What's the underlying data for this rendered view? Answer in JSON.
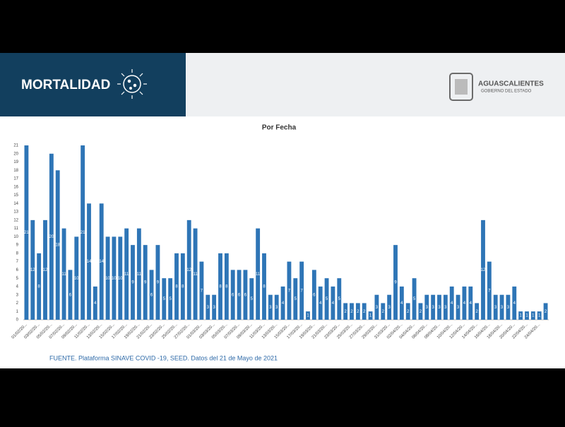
{
  "header": {
    "title": "MORTALIDAD",
    "logo_name": "AGUASCALIENTES",
    "logo_subtitle": "GOBIERNO DEL ESTADO"
  },
  "footer": "FUENTE. Plataforma SINAVE COVID -19, SEED. Datos del 21 de Mayo de 2021",
  "chart_data": {
    "type": "bar",
    "title": "Por Fecha",
    "color": "#2e75b6",
    "categories": [
      "01/02/20...",
      null,
      "03/02/20...",
      null,
      "05/02/20...",
      null,
      "07/02/20...",
      null,
      "09/02/20...",
      null,
      "11/02/20...",
      null,
      "13/02/20...",
      null,
      "15/02/20...",
      null,
      "17/02/20...",
      null,
      "19/02/20...",
      null,
      "21/02/20...",
      null,
      "23/02/20...",
      null,
      "25/02/20...",
      null,
      "27/02/20...",
      null,
      "01/03/20...",
      null,
      "03/03/20...",
      null,
      "05/03/20...",
      null,
      "07/03/20...",
      null,
      "09/03/20...",
      null,
      "11/03/20...",
      null,
      "13/03/20...",
      null,
      "15/03/20...",
      null,
      "17/03/20...",
      null,
      "19/03/20...",
      null,
      "21/03/20...",
      null,
      "23/03/20...",
      null,
      "25/03/20...",
      null,
      "27/03/20...",
      null,
      "29/03/20...",
      null,
      "31/03/20...",
      null,
      "02/04/20...",
      null,
      "04/04/20...",
      null,
      "06/04/20...",
      null,
      "08/04/20...",
      null,
      "10/04/20...",
      null,
      "12/04/20...",
      null,
      "14/04/20...",
      null,
      "16/04/20...",
      null,
      "18/04/20...",
      null,
      "20/04/20...",
      null,
      "22/04/20...",
      null,
      "24/04/20...",
      null
    ],
    "values": [
      21,
      12,
      8,
      12,
      20,
      18,
      11,
      6,
      10,
      21,
      14,
      4,
      14,
      10,
      10,
      10,
      11,
      9,
      11,
      9,
      6,
      9,
      5,
      5,
      8,
      8,
      12,
      11,
      7,
      3,
      3,
      8,
      8,
      6,
      6,
      6,
      5,
      11,
      8,
      3,
      3,
      4,
      7,
      5,
      7,
      1,
      6,
      4,
      5,
      4,
      5,
      2,
      2,
      2,
      2,
      1,
      3,
      2,
      3,
      9,
      4,
      2,
      5,
      2,
      3,
      3,
      3,
      3,
      4,
      3,
      4,
      4,
      2,
      12,
      7,
      3,
      3,
      3,
      4,
      1,
      1,
      1,
      1,
      2
    ],
    "ylim": [
      0,
      21
    ],
    "yticks": [
      0,
      1,
      2,
      3,
      4,
      5,
      6,
      7,
      8,
      9,
      10,
      11,
      12,
      13,
      14,
      15,
      16,
      17,
      18,
      19,
      20,
      21
    ],
    "grid": false
  }
}
